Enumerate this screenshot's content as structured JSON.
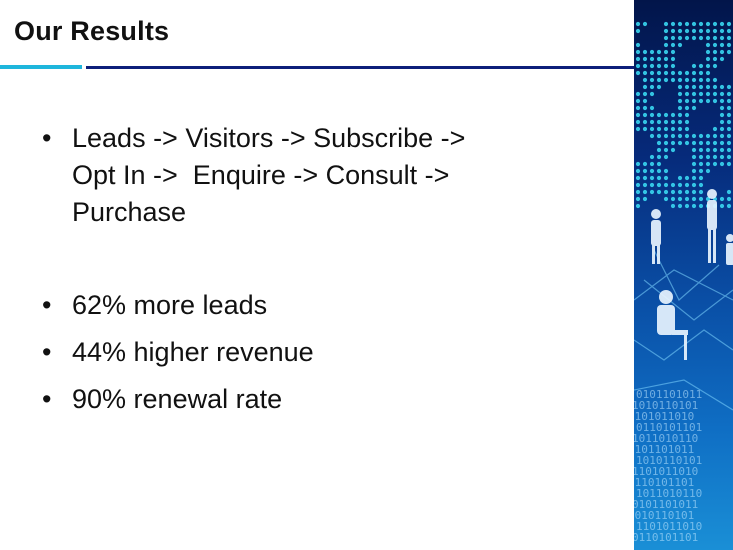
{
  "slide": {
    "title": "Our Results",
    "bullets": [
      {
        "lines": [
          "Leads -> Visitors -> Subscribe ->",
          "Opt In ->  Enquire -> Consult ->",
          "Purchase"
        ]
      },
      {
        "text": "62% more leads"
      },
      {
        "text": "44% higher revenue"
      },
      {
        "text": "90% renewal rate"
      }
    ]
  },
  "decor": {
    "bullet_glyph": "•",
    "accent_cyan": "#1eb6dc",
    "accent_navy": "#0d1f7a",
    "side_image": "people-network-binary-image"
  }
}
